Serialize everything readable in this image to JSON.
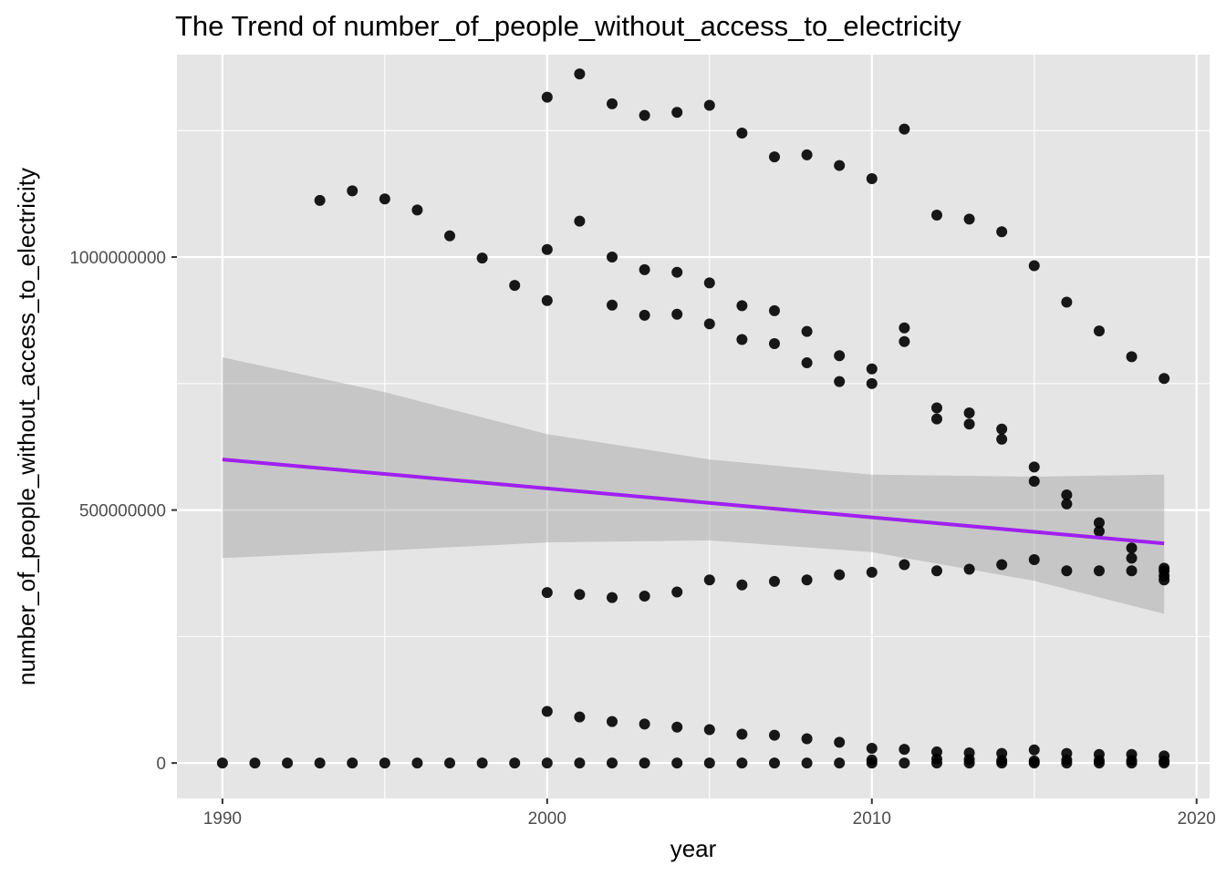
{
  "chart_data": {
    "type": "scatter",
    "title": "The Trend of number_of_people_without_access_to_electricity",
    "xlabel": "year",
    "ylabel": "number_of_people_without_access_to_electricity",
    "xlim": [
      1988.6,
      2020.4
    ],
    "ylim": [
      -70000000,
      1400000000
    ],
    "x_ticks": [
      1990,
      2000,
      2010,
      2020
    ],
    "y_ticks": [
      0,
      500000000,
      1000000000
    ],
    "x_tick_labels": [
      "1990",
      "2000",
      "2010",
      "2020"
    ],
    "y_tick_labels": [
      "0",
      "500000000",
      "1000000000"
    ],
    "grid": true,
    "legend": "none",
    "series": [
      {
        "type": "scatter",
        "points": [
          [
            1990,
            0
          ],
          [
            1991,
            0
          ],
          [
            1992,
            0
          ],
          [
            1993,
            0
          ],
          [
            1994,
            0
          ],
          [
            1995,
            0
          ],
          [
            1996,
            0
          ],
          [
            1997,
            0
          ],
          [
            1998,
            0
          ],
          [
            1999,
            0
          ],
          [
            2000,
            0
          ],
          [
            2001,
            0
          ],
          [
            2002,
            0
          ],
          [
            2003,
            0
          ],
          [
            2004,
            0
          ],
          [
            2005,
            0
          ],
          [
            2006,
            0
          ],
          [
            2007,
            0
          ],
          [
            2008,
            0
          ],
          [
            2009,
            0
          ],
          [
            2010,
            0
          ],
          [
            2011,
            0
          ],
          [
            2012,
            0
          ],
          [
            2013,
            0
          ],
          [
            2014,
            0
          ],
          [
            2015,
            0
          ],
          [
            2016,
            0
          ],
          [
            2017,
            0
          ],
          [
            2018,
            0
          ],
          [
            2019,
            0
          ],
          [
            1993,
            1112000000
          ],
          [
            1994,
            1131000000
          ],
          [
            1995,
            1115000000
          ],
          [
            1996,
            1093000000
          ],
          [
            1997,
            1042000000
          ],
          [
            1998,
            998000000
          ],
          [
            1999,
            944000000
          ],
          [
            2000,
            1316000000
          ],
          [
            2001,
            1362000000
          ],
          [
            2002,
            1303000000
          ],
          [
            2003,
            1280000000
          ],
          [
            2004,
            1286000000
          ],
          [
            2005,
            1300000000
          ],
          [
            2006,
            1245000000
          ],
          [
            2007,
            1198000000
          ],
          [
            2008,
            1202000000
          ],
          [
            2009,
            1181000000
          ],
          [
            2010,
            1155000000
          ],
          [
            2011,
            1253000000
          ],
          [
            2012,
            1083000000
          ],
          [
            2013,
            1075000000
          ],
          [
            2014,
            1050000000
          ],
          [
            2015,
            983000000
          ],
          [
            2016,
            911000000
          ],
          [
            2017,
            854000000
          ],
          [
            2018,
            803000000
          ],
          [
            2019,
            760000000
          ],
          [
            2000,
            1015000000
          ],
          [
            2001,
            1071000000
          ],
          [
            2002,
            1000000000
          ],
          [
            2003,
            975000000
          ],
          [
            2004,
            970000000
          ],
          [
            2005,
            949000000
          ],
          [
            2006,
            904000000
          ],
          [
            2007,
            894000000
          ],
          [
            2008,
            853000000
          ],
          [
            2009,
            805000000
          ],
          [
            2010,
            779000000
          ],
          [
            2011,
            860000000
          ],
          [
            2012,
            702000000
          ],
          [
            2013,
            692000000
          ],
          [
            2014,
            660000000
          ],
          [
            2015,
            585000000
          ],
          [
            2016,
            530000000
          ],
          [
            2017,
            475000000
          ],
          [
            2018,
            425000000
          ],
          [
            2019,
            385000000
          ],
          [
            2000,
            914000000
          ],
          [
            2002,
            905000000
          ],
          [
            2003,
            885000000
          ],
          [
            2004,
            887000000
          ],
          [
            2005,
            868000000
          ],
          [
            2006,
            837000000
          ],
          [
            2007,
            829000000
          ],
          [
            2008,
            791000000
          ],
          [
            2009,
            754000000
          ],
          [
            2010,
            750000000
          ],
          [
            2011,
            833000000
          ],
          [
            2012,
            680000000
          ],
          [
            2013,
            670000000
          ],
          [
            2014,
            640000000
          ],
          [
            2015,
            557000000
          ],
          [
            2016,
            512000000
          ],
          [
            2017,
            458000000
          ],
          [
            2018,
            405000000
          ],
          [
            2019,
            370000000
          ],
          [
            2000,
            337000000
          ],
          [
            2001,
            333000000
          ],
          [
            2002,
            327000000
          ],
          [
            2003,
            330000000
          ],
          [
            2004,
            338000000
          ],
          [
            2005,
            362000000
          ],
          [
            2006,
            352000000
          ],
          [
            2007,
            359000000
          ],
          [
            2008,
            362000000
          ],
          [
            2009,
            372000000
          ],
          [
            2010,
            377000000
          ],
          [
            2011,
            392000000
          ],
          [
            2012,
            380000000
          ],
          [
            2013,
            383000000
          ],
          [
            2014,
            392000000
          ],
          [
            2015,
            402000000
          ],
          [
            2016,
            380000000
          ],
          [
            2017,
            380000000
          ],
          [
            2018,
            380000000
          ],
          [
            2019,
            380000000
          ],
          [
            2000,
            102000000
          ],
          [
            2001,
            91000000
          ],
          [
            2002,
            82000000
          ],
          [
            2003,
            77000000
          ],
          [
            2004,
            71000000
          ],
          [
            2005,
            66000000
          ],
          [
            2006,
            57000000
          ],
          [
            2007,
            55000000
          ],
          [
            2008,
            48000000
          ],
          [
            2009,
            41000000
          ],
          [
            2010,
            29000000
          ],
          [
            2011,
            27000000
          ],
          [
            2012,
            22000000
          ],
          [
            2013,
            20000000
          ],
          [
            2014,
            19000000
          ],
          [
            2015,
            26000000
          ],
          [
            2016,
            19000000
          ],
          [
            2017,
            17000000
          ],
          [
            2018,
            17000000
          ],
          [
            2019,
            14000000
          ],
          [
            2010,
            6000000
          ],
          [
            2012,
            8000000
          ],
          [
            2013,
            7000000
          ],
          [
            2014,
            5000000
          ],
          [
            2015,
            4000000
          ],
          [
            2016,
            6000000
          ],
          [
            2017,
            5000000
          ],
          [
            2018,
            5000000
          ],
          [
            2019,
            4000000
          ],
          [
            2019,
            362000000
          ]
        ]
      },
      {
        "type": "line",
        "name": "",
        "color": "#a020f0",
        "points": [
          [
            1990,
            600000000
          ],
          [
            2019,
            434000000
          ]
        ]
      },
      {
        "type": "area",
        "name": "",
        "color": "#999999",
        "upper": [
          [
            1990,
            802000000
          ],
          [
            1995,
            733000000
          ],
          [
            2000,
            650000000
          ],
          [
            2005,
            600000000
          ],
          [
            2010,
            570000000
          ],
          [
            2015,
            566000000
          ],
          [
            2019,
            570000000
          ]
        ],
        "lower": [
          [
            1990,
            405000000
          ],
          [
            1995,
            420000000
          ],
          [
            2000,
            436000000
          ],
          [
            2005,
            440000000
          ],
          [
            2010,
            417000000
          ],
          [
            2015,
            360000000
          ],
          [
            2019,
            295000000
          ]
        ]
      }
    ]
  },
  "colors": {
    "panel_background": "#e5e5e5",
    "grid": "#ffffff",
    "points": "#000000",
    "trend_line": "#a020f0",
    "confidence_band": "#999999"
  }
}
